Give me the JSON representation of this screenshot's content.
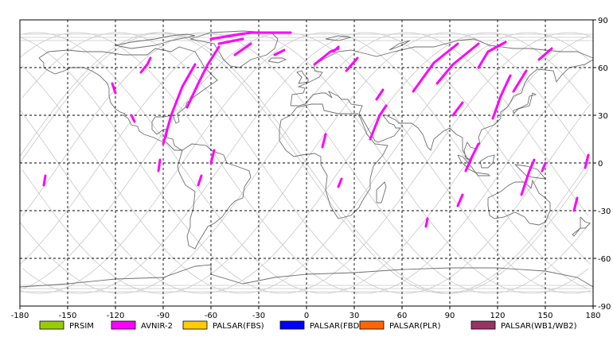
{
  "map": {
    "projection": "equirectangular",
    "x_axis": {
      "ticks": [
        "-180",
        "-150",
        "-120",
        "-90",
        "-60",
        "-30",
        "0",
        "30",
        "60",
        "90",
        "120",
        "150",
        "180"
      ]
    },
    "y_axis": {
      "ticks": [
        "90",
        "60",
        "30",
        "0",
        "-30",
        "-60",
        "-90"
      ]
    },
    "colors": {
      "grid": "#000000",
      "coast": "#6e6e6e",
      "orbit": "#c8c8c8",
      "frame": "#000000"
    }
  },
  "legend": [
    {
      "label": "PRSIM",
      "color": "#99cc00"
    },
    {
      "label": "AVNIR-2",
      "color": "#ff00ff"
    },
    {
      "label": "PALSAR(FBS)",
      "color": "#ffcc00"
    },
    {
      "label": "PALSAR(FBD)",
      "color": "#0000ff"
    },
    {
      "label": "PALSAR(PLR)",
      "color": "#ff6600"
    },
    {
      "label": "PALSAR(WB1/WB2)",
      "color": "#993366"
    }
  ],
  "acquisitions": [
    {
      "sensor": "AVNIR-2",
      "path": [
        [
          -60,
          78
        ],
        [
          -35,
          82
        ],
        [
          -10,
          82
        ]
      ]
    },
    {
      "sensor": "AVNIR-2",
      "path": [
        [
          -55,
          75
        ],
        [
          -40,
          78
        ]
      ]
    },
    {
      "sensor": "AVNIR-2",
      "path": [
        [
          -75,
          35
        ],
        [
          -68,
          50
        ],
        [
          -62,
          62
        ],
        [
          -55,
          73
        ]
      ]
    },
    {
      "sensor": "AVNIR-2",
      "path": [
        [
          -90,
          12
        ],
        [
          -85,
          30
        ],
        [
          -78,
          48
        ],
        [
          -70,
          62
        ]
      ]
    },
    {
      "sensor": "AVNIR-2",
      "path": [
        [
          -104,
          57
        ],
        [
          -100,
          62
        ],
        [
          -98,
          66
        ]
      ]
    },
    {
      "sensor": "AVNIR-2",
      "path": [
        [
          -122,
          50
        ],
        [
          -120,
          44
        ]
      ]
    },
    {
      "sensor": "AVNIR-2",
      "path": [
        [
          -110,
          30
        ],
        [
          -108,
          26
        ]
      ]
    },
    {
      "sensor": "AVNIR-2",
      "path": [
        [
          -60,
          0
        ],
        [
          -58,
          8
        ]
      ]
    },
    {
      "sensor": "AVNIR-2",
      "path": [
        [
          -93,
          -5
        ],
        [
          -92,
          2
        ]
      ]
    },
    {
      "sensor": "AVNIR-2",
      "path": [
        [
          -68,
          -14
        ],
        [
          -66,
          -8
        ]
      ]
    },
    {
      "sensor": "AVNIR-2",
      "path": [
        [
          -165,
          -14
        ],
        [
          -164,
          -8
        ]
      ]
    },
    {
      "sensor": "AVNIR-2",
      "path": [
        [
          -45,
          68
        ],
        [
          -35,
          75
        ]
      ]
    },
    {
      "sensor": "AVNIR-2",
      "path": [
        [
          -20,
          68
        ],
        [
          -14,
          71
        ]
      ]
    },
    {
      "sensor": "AVNIR-2",
      "path": [
        [
          5,
          62
        ],
        [
          15,
          70
        ],
        [
          20,
          72
        ]
      ]
    },
    {
      "sensor": "AVNIR-2",
      "path": [
        [
          17,
          70
        ],
        [
          20,
          73
        ]
      ]
    },
    {
      "sensor": "AVNIR-2",
      "path": [
        [
          25,
          58
        ],
        [
          32,
          66
        ]
      ]
    },
    {
      "sensor": "AVNIR-2",
      "path": [
        [
          44,
          40
        ],
        [
          48,
          46
        ]
      ]
    },
    {
      "sensor": "AVNIR-2",
      "path": [
        [
          40,
          15
        ],
        [
          46,
          30
        ],
        [
          50,
          36
        ]
      ]
    },
    {
      "sensor": "AVNIR-2",
      "path": [
        [
          20,
          -15
        ],
        [
          22,
          -10
        ]
      ]
    },
    {
      "sensor": "AVNIR-2",
      "path": [
        [
          67,
          45
        ],
        [
          80,
          63
        ],
        [
          95,
          75
        ]
      ]
    },
    {
      "sensor": "AVNIR-2",
      "path": [
        [
          82,
          50
        ],
        [
          92,
          62
        ],
        [
          108,
          75
        ]
      ]
    },
    {
      "sensor": "AVNIR-2",
      "path": [
        [
          92,
          30
        ],
        [
          98,
          38
        ]
      ]
    },
    {
      "sensor": "AVNIR-2",
      "path": [
        [
          108,
          60
        ],
        [
          114,
          70
        ],
        [
          125,
          76
        ]
      ]
    },
    {
      "sensor": "AVNIR-2",
      "path": [
        [
          117,
          28
        ],
        [
          122,
          42
        ],
        [
          128,
          55
        ]
      ]
    },
    {
      "sensor": "AVNIR-2",
      "path": [
        [
          100,
          -5
        ],
        [
          104,
          4
        ],
        [
          108,
          12
        ]
      ]
    },
    {
      "sensor": "AVNIR-2",
      "path": [
        [
          95,
          -27
        ],
        [
          98,
          -20
        ]
      ]
    },
    {
      "sensor": "AVNIR-2",
      "path": [
        [
          130,
          45
        ],
        [
          138,
          58
        ]
      ]
    },
    {
      "sensor": "AVNIR-2",
      "path": [
        [
          146,
          65
        ],
        [
          154,
          72
        ]
      ]
    },
    {
      "sensor": "AVNIR-2",
      "path": [
        [
          135,
          -20
        ],
        [
          140,
          -5
        ],
        [
          143,
          2
        ]
      ]
    },
    {
      "sensor": "AVNIR-2",
      "path": [
        [
          148,
          -5
        ],
        [
          150,
          0
        ]
      ]
    },
    {
      "sensor": "AVNIR-2",
      "path": [
        [
          168,
          -30
        ],
        [
          170,
          -22
        ]
      ]
    },
    {
      "sensor": "AVNIR-2",
      "path": [
        [
          175,
          -3
        ],
        [
          177,
          5
        ]
      ]
    },
    {
      "sensor": "AVNIR-2",
      "path": [
        [
          75,
          -40
        ],
        [
          76,
          -35
        ]
      ]
    },
    {
      "sensor": "AVNIR-2",
      "path": [
        [
          10,
          10
        ],
        [
          12,
          18
        ]
      ]
    }
  ]
}
